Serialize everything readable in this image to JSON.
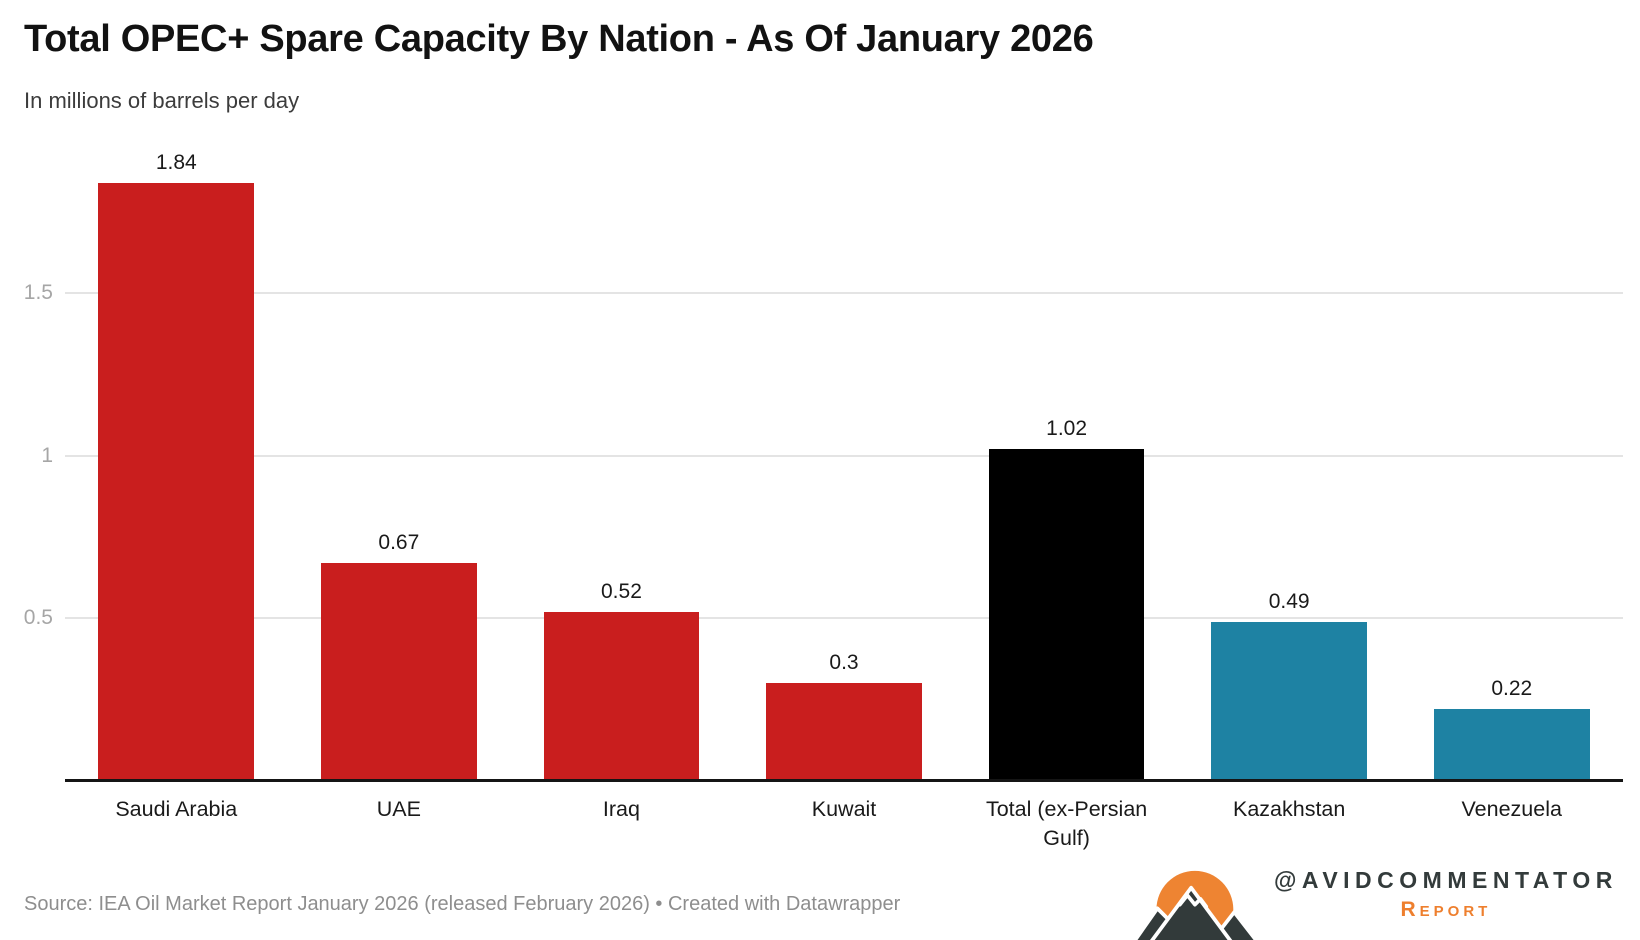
{
  "header": {
    "title": "Total OPEC+ Spare Capacity By Nation - As Of January 2026",
    "subtitle": "In millions of barrels per day"
  },
  "chart_data": {
    "type": "bar",
    "title": "Total OPEC+ Spare Capacity By Nation - As Of January 2026",
    "subtitle": "In millions of barrels per day",
    "categories": [
      "Saudi Arabia",
      "UAE",
      "Iraq",
      "Kuwait",
      "Total (ex-Persian Gulf)",
      "Kazakhstan",
      "Venezuela"
    ],
    "values": [
      1.84,
      0.67,
      0.52,
      0.3,
      1.02,
      0.49,
      0.22
    ],
    "value_labels": [
      "1.84",
      "0.67",
      "0.52",
      "0.3",
      "1.02",
      "0.49",
      "0.22"
    ],
    "bar_colors": [
      "#c91e1e",
      "#c91e1e",
      "#c91e1e",
      "#c91e1e",
      "#000000",
      "#1e82a3",
      "#1e82a3"
    ],
    "xlabel": "",
    "ylabel": "",
    "ylim": [
      0,
      1.94
    ],
    "yticks": [
      0.5,
      1,
      1.5
    ],
    "ytick_labels": [
      "0.5",
      "1",
      "1.5"
    ],
    "grid": "horizontal-only",
    "legend": "none",
    "value_labels_position": "above-bars"
  },
  "footer": {
    "source": "Source: IEA Oil Market Report January 2026 (released February 2026) • Created with Datawrapper"
  },
  "branding": {
    "handle": "@AVIDCOMMENTATOR",
    "label": "Report",
    "logo": "sun-mountains-icon",
    "accent_orange": "#ee8432",
    "dark_gray": "#333b3b"
  },
  "colors": {
    "gulf_red": "#c91e1e",
    "total_black": "#000000",
    "non_gulf_teal": "#1e82a3",
    "grid_line": "#e4e4e4",
    "axis_line": "#151515",
    "tick_text": "#a6a6a6",
    "footer_text": "#8e8e8e"
  }
}
